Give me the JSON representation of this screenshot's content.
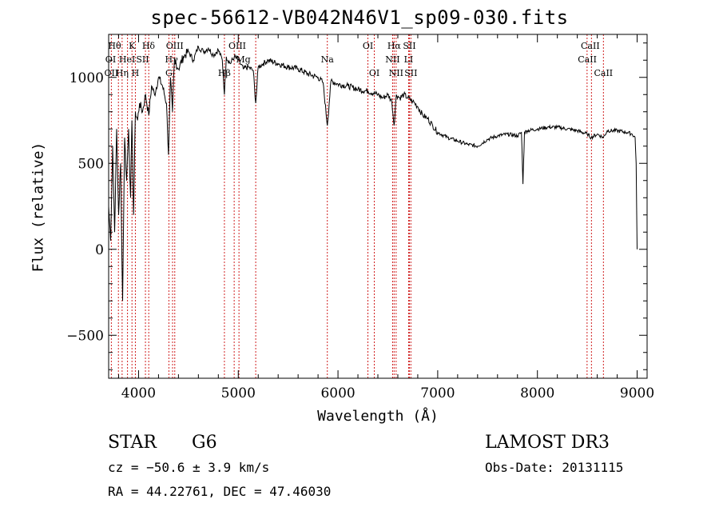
{
  "chart_data": {
    "type": "line",
    "title": "spec-56612-VB042N46V1_sp09-030.fits",
    "xlabel": "Wavelength (Å)",
    "ylabel": "Flux (relative)",
    "xlim": [
      3700,
      9100
    ],
    "ylim": [
      -750,
      1250
    ],
    "xticks": [
      4000,
      5000,
      6000,
      7000,
      8000,
      9000
    ],
    "xtick_labels": [
      "4000",
      "5000",
      "6000",
      "7000",
      "8000",
      "9000"
    ],
    "yticks": [
      -500,
      0,
      500,
      1000
    ],
    "ytick_labels": [
      "−500",
      "0",
      "500",
      "1000"
    ],
    "series": [
      {
        "name": "flux",
        "x": [
          3700,
          3720,
          3740,
          3760,
          3780,
          3800,
          3820,
          3840,
          3860,
          3880,
          3900,
          3920,
          3933,
          3950,
          3968,
          3990,
          4010,
          4040,
          4070,
          4102,
          4130,
          4160,
          4200,
          4240,
          4280,
          4300,
          4320,
          4340,
          4360,
          4400,
          4450,
          4500,
          4550,
          4600,
          4650,
          4700,
          4750,
          4800,
          4840,
          4861,
          4880,
          4920,
          4960,
          5000,
          5050,
          5100,
          5150,
          5175,
          5200,
          5250,
          5300,
          5400,
          5500,
          5600,
          5700,
          5800,
          5850,
          5893,
          5930,
          6000,
          6100,
          6200,
          6300,
          6400,
          6450,
          6500,
          6540,
          6563,
          6585,
          6620,
          6660,
          6700,
          6750,
          6800,
          6850,
          6900,
          6950,
          7000,
          7100,
          7200,
          7300,
          7400,
          7500,
          7600,
          7700,
          7800,
          7840,
          7855,
          7870,
          7900,
          8000,
          8100,
          8200,
          8300,
          8400,
          8500,
          8540,
          8600,
          8662,
          8700,
          8800,
          8900,
          8950,
          8980,
          8990,
          9000
        ],
        "y": [
          250,
          50,
          600,
          100,
          700,
          200,
          500,
          -300,
          650,
          400,
          700,
          300,
          750,
          200,
          800,
          750,
          850,
          800,
          900,
          780,
          950,
          900,
          1000,
          950,
          850,
          550,
          1000,
          800,
          1100,
          1050,
          1120,
          1150,
          1100,
          1180,
          1150,
          1170,
          1130,
          1160,
          1100,
          900,
          1120,
          1080,
          1120,
          1100,
          1050,
          1060,
          1040,
          850,
          1060,
          1080,
          1100,
          1080,
          1060,
          1050,
          1020,
          1000,
          970,
          720,
          980,
          960,
          950,
          930,
          920,
          900,
          880,
          900,
          860,
          720,
          900,
          880,
          900,
          880,
          860,
          830,
          780,
          760,
          720,
          680,
          650,
          630,
          610,
          600,
          640,
          660,
          670,
          660,
          680,
          380,
          680,
          690,
          700,
          710,
          710,
          700,
          690,
          670,
          650,
          670,
          650,
          690,
          690,
          680,
          670,
          650,
          500,
          0
        ]
      }
    ],
    "lines": [
      {
        "name": "Hθ",
        "x": 3798
      },
      {
        "name": "OII",
        "x": 3727
      },
      {
        "name": "Hη",
        "x": 3835
      },
      {
        "name": "HeI",
        "x": 3889
      },
      {
        "name": "K",
        "x": 3934
      },
      {
        "name": "H",
        "x": 3968
      },
      {
        "name": "SII",
        "x": 4069
      },
      {
        "name": "Hδ",
        "x": 4102
      },
      {
        "name": "G",
        "x": 4304
      },
      {
        "name": "Hγ",
        "x": 4341
      },
      {
        "name": "OIII",
        "x": 4363
      },
      {
        "name": "Hβ",
        "x": 4861
      },
      {
        "name": "OIII",
        "x": 4959
      },
      {
        "name": "OIII",
        "x": 5007
      },
      {
        "name": "Mg",
        "x": 5175
      },
      {
        "name": "Na",
        "x": 5893
      },
      {
        "name": "OI",
        "x": 6300
      },
      {
        "name": "OI",
        "x": 6364
      },
      {
        "name": "NII",
        "x": 6548
      },
      {
        "name": "Hα",
        "x": 6563
      },
      {
        "name": "NII",
        "x": 6583
      },
      {
        "name": "LI",
        "x": 6708
      },
      {
        "name": "SII",
        "x": 6716
      },
      {
        "name": "SII",
        "x": 6731
      },
      {
        "name": "CaII",
        "x": 8498
      },
      {
        "name": "CaII",
        "x": 8542
      },
      {
        "name": "CaII",
        "x": 8662
      }
    ],
    "line_labels": [
      {
        "text": "Hθ",
        "x": 3760,
        "row": 0
      },
      {
        "text": "Hδ",
        "x": 4100,
        "row": 0
      },
      {
        "text": "OI",
        "x": 3720,
        "row": 1
      },
      {
        "text": "HeI",
        "x": 3885,
        "row": 1
      },
      {
        "text": "OII",
        "x": 3727,
        "row": 2
      },
      {
        "text": "Hη",
        "x": 3835,
        "row": 2
      },
      {
        "text": "K",
        "x": 3934,
        "row": 0
      },
      {
        "text": "SII",
        "x": 4040,
        "row": 1
      },
      {
        "text": "H",
        "x": 3968,
        "row": 2
      },
      {
        "text": "OIII",
        "x": 4363,
        "row": 0
      },
      {
        "text": "Hγ",
        "x": 4330,
        "row": 1
      },
      {
        "text": "G",
        "x": 4304,
        "row": 2
      },
      {
        "text": "OIII",
        "x": 4990,
        "row": 0
      },
      {
        "text": "Mg",
        "x": 5050,
        "row": 1
      },
      {
        "text": "Hβ",
        "x": 4861,
        "row": 2
      },
      {
        "text": "Na",
        "x": 5893,
        "row": 1
      },
      {
        "text": "OI",
        "x": 6300,
        "row": 0
      },
      {
        "text": "OI",
        "x": 6364,
        "row": 2
      },
      {
        "text": "Hα",
        "x": 6563,
        "row": 0
      },
      {
        "text": "SII",
        "x": 6716,
        "row": 0
      },
      {
        "text": "NII",
        "x": 6548,
        "row": 1
      },
      {
        "text": "LI",
        "x": 6708,
        "row": 1
      },
      {
        "text": "NII",
        "x": 6583,
        "row": 2
      },
      {
        "text": "SII",
        "x": 6731,
        "row": 2
      },
      {
        "text": "CaII",
        "x": 8530,
        "row": 0
      },
      {
        "text": "CaII",
        "x": 8500,
        "row": 1
      },
      {
        "text": "CaII",
        "x": 8662,
        "row": 2
      }
    ],
    "line_color": "#d02020",
    "grid": false
  },
  "info": {
    "class": "STAR",
    "subclass": "G6",
    "survey": "LAMOST DR3",
    "cz": "cz = −50.6 ± 3.9 km/s",
    "obs_date": "Obs-Date: 20131115",
    "coords": "RA =  44.22761, DEC =  47.46030"
  }
}
